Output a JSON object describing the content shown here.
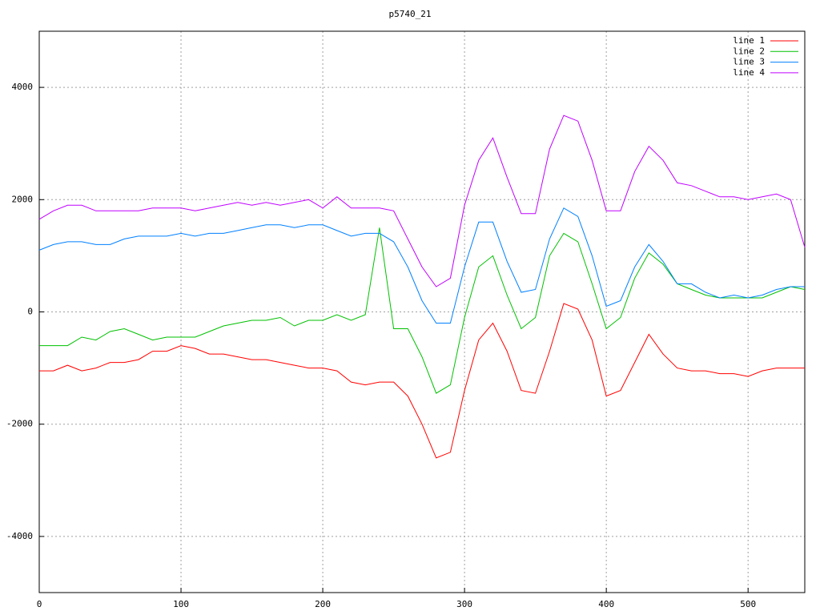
{
  "chart_data": {
    "type": "line",
    "title": "p5740_21",
    "x": [
      0,
      10,
      20,
      30,
      40,
      50,
      60,
      70,
      80,
      90,
      100,
      110,
      120,
      130,
      140,
      150,
      160,
      170,
      180,
      190,
      200,
      210,
      220,
      230,
      240,
      250,
      260,
      270,
      280,
      290,
      300,
      310,
      320,
      330,
      340,
      350,
      360,
      370,
      380,
      390,
      400,
      410,
      420,
      430,
      440,
      450,
      460,
      470,
      480,
      490,
      500,
      510,
      520,
      530,
      540
    ],
    "series": [
      {
        "name": "line 1",
        "color": "#ff0000",
        "values": [
          -1050,
          -1050,
          -950,
          -1050,
          -1000,
          -900,
          -900,
          -850,
          -700,
          -700,
          -600,
          -650,
          -750,
          -750,
          -800,
          -850,
          -850,
          -900,
          -950,
          -1000,
          -1000,
          -1050,
          -1250,
          -1300,
          -1250,
          -1250,
          -1500,
          -2000,
          -2600,
          -2500,
          -1400,
          -500,
          -200,
          -700,
          -1400,
          -1450,
          -700,
          150,
          50,
          -500,
          -1500,
          -1400,
          -900,
          -400,
          -750,
          -1000,
          -1050,
          -1050,
          -1100,
          -1100,
          -1150,
          -1050,
          -1000,
          -1000,
          -1000
        ]
      },
      {
        "name": "line 2",
        "color": "#00c000",
        "values": [
          -600,
          -600,
          -600,
          -450,
          -500,
          -350,
          -300,
          -400,
          -500,
          -450,
          -450,
          -450,
          -350,
          -250,
          -200,
          -150,
          -150,
          -100,
          -250,
          -150,
          -150,
          -50,
          -150,
          -50,
          1500,
          -300,
          -300,
          -800,
          -1450,
          -1300,
          -100,
          800,
          1000,
          300,
          -300,
          -100,
          1000,
          1400,
          1250,
          500,
          -300,
          -100,
          600,
          1050,
          850,
          500,
          400,
          300,
          250,
          250,
          250,
          250,
          350,
          450,
          400
        ]
      },
      {
        "name": "line 3",
        "color": "#0080ff",
        "values": [
          1100,
          1200,
          1250,
          1250,
          1200,
          1200,
          1300,
          1350,
          1350,
          1350,
          1400,
          1350,
          1400,
          1400,
          1450,
          1500,
          1550,
          1550,
          1500,
          1550,
          1550,
          1450,
          1350,
          1400,
          1400,
          1250,
          800,
          200,
          -200,
          -200,
          800,
          1600,
          1600,
          900,
          350,
          400,
          1300,
          1850,
          1700,
          1000,
          100,
          200,
          800,
          1200,
          900,
          500,
          500,
          350,
          250,
          300,
          250,
          300,
          400,
          450,
          450
        ]
      },
      {
        "name": "line 4",
        "color": "#c000ff",
        "values": [
          1650,
          1800,
          1900,
          1900,
          1800,
          1800,
          1800,
          1800,
          1850,
          1850,
          1850,
          1800,
          1850,
          1900,
          1950,
          1900,
          1950,
          1900,
          1950,
          2000,
          1850,
          2050,
          1850,
          1850,
          1850,
          1800,
          1300,
          800,
          450,
          600,
          1900,
          2700,
          3100,
          2400,
          1750,
          1750,
          2900,
          3500,
          3400,
          2700,
          1800,
          1800,
          2500,
          2950,
          2700,
          2300,
          2250,
          2150,
          2050,
          2050,
          2000,
          2050,
          2100,
          2000,
          1150
        ]
      }
    ],
    "xlim": [
      0,
      540
    ],
    "ylim": [
      -5000,
      5000
    ],
    "xticks": [
      0,
      100,
      200,
      300,
      400,
      500
    ],
    "yticks": [
      -4000,
      -2000,
      0,
      2000,
      4000
    ],
    "grid": true,
    "legend": "top-right"
  }
}
